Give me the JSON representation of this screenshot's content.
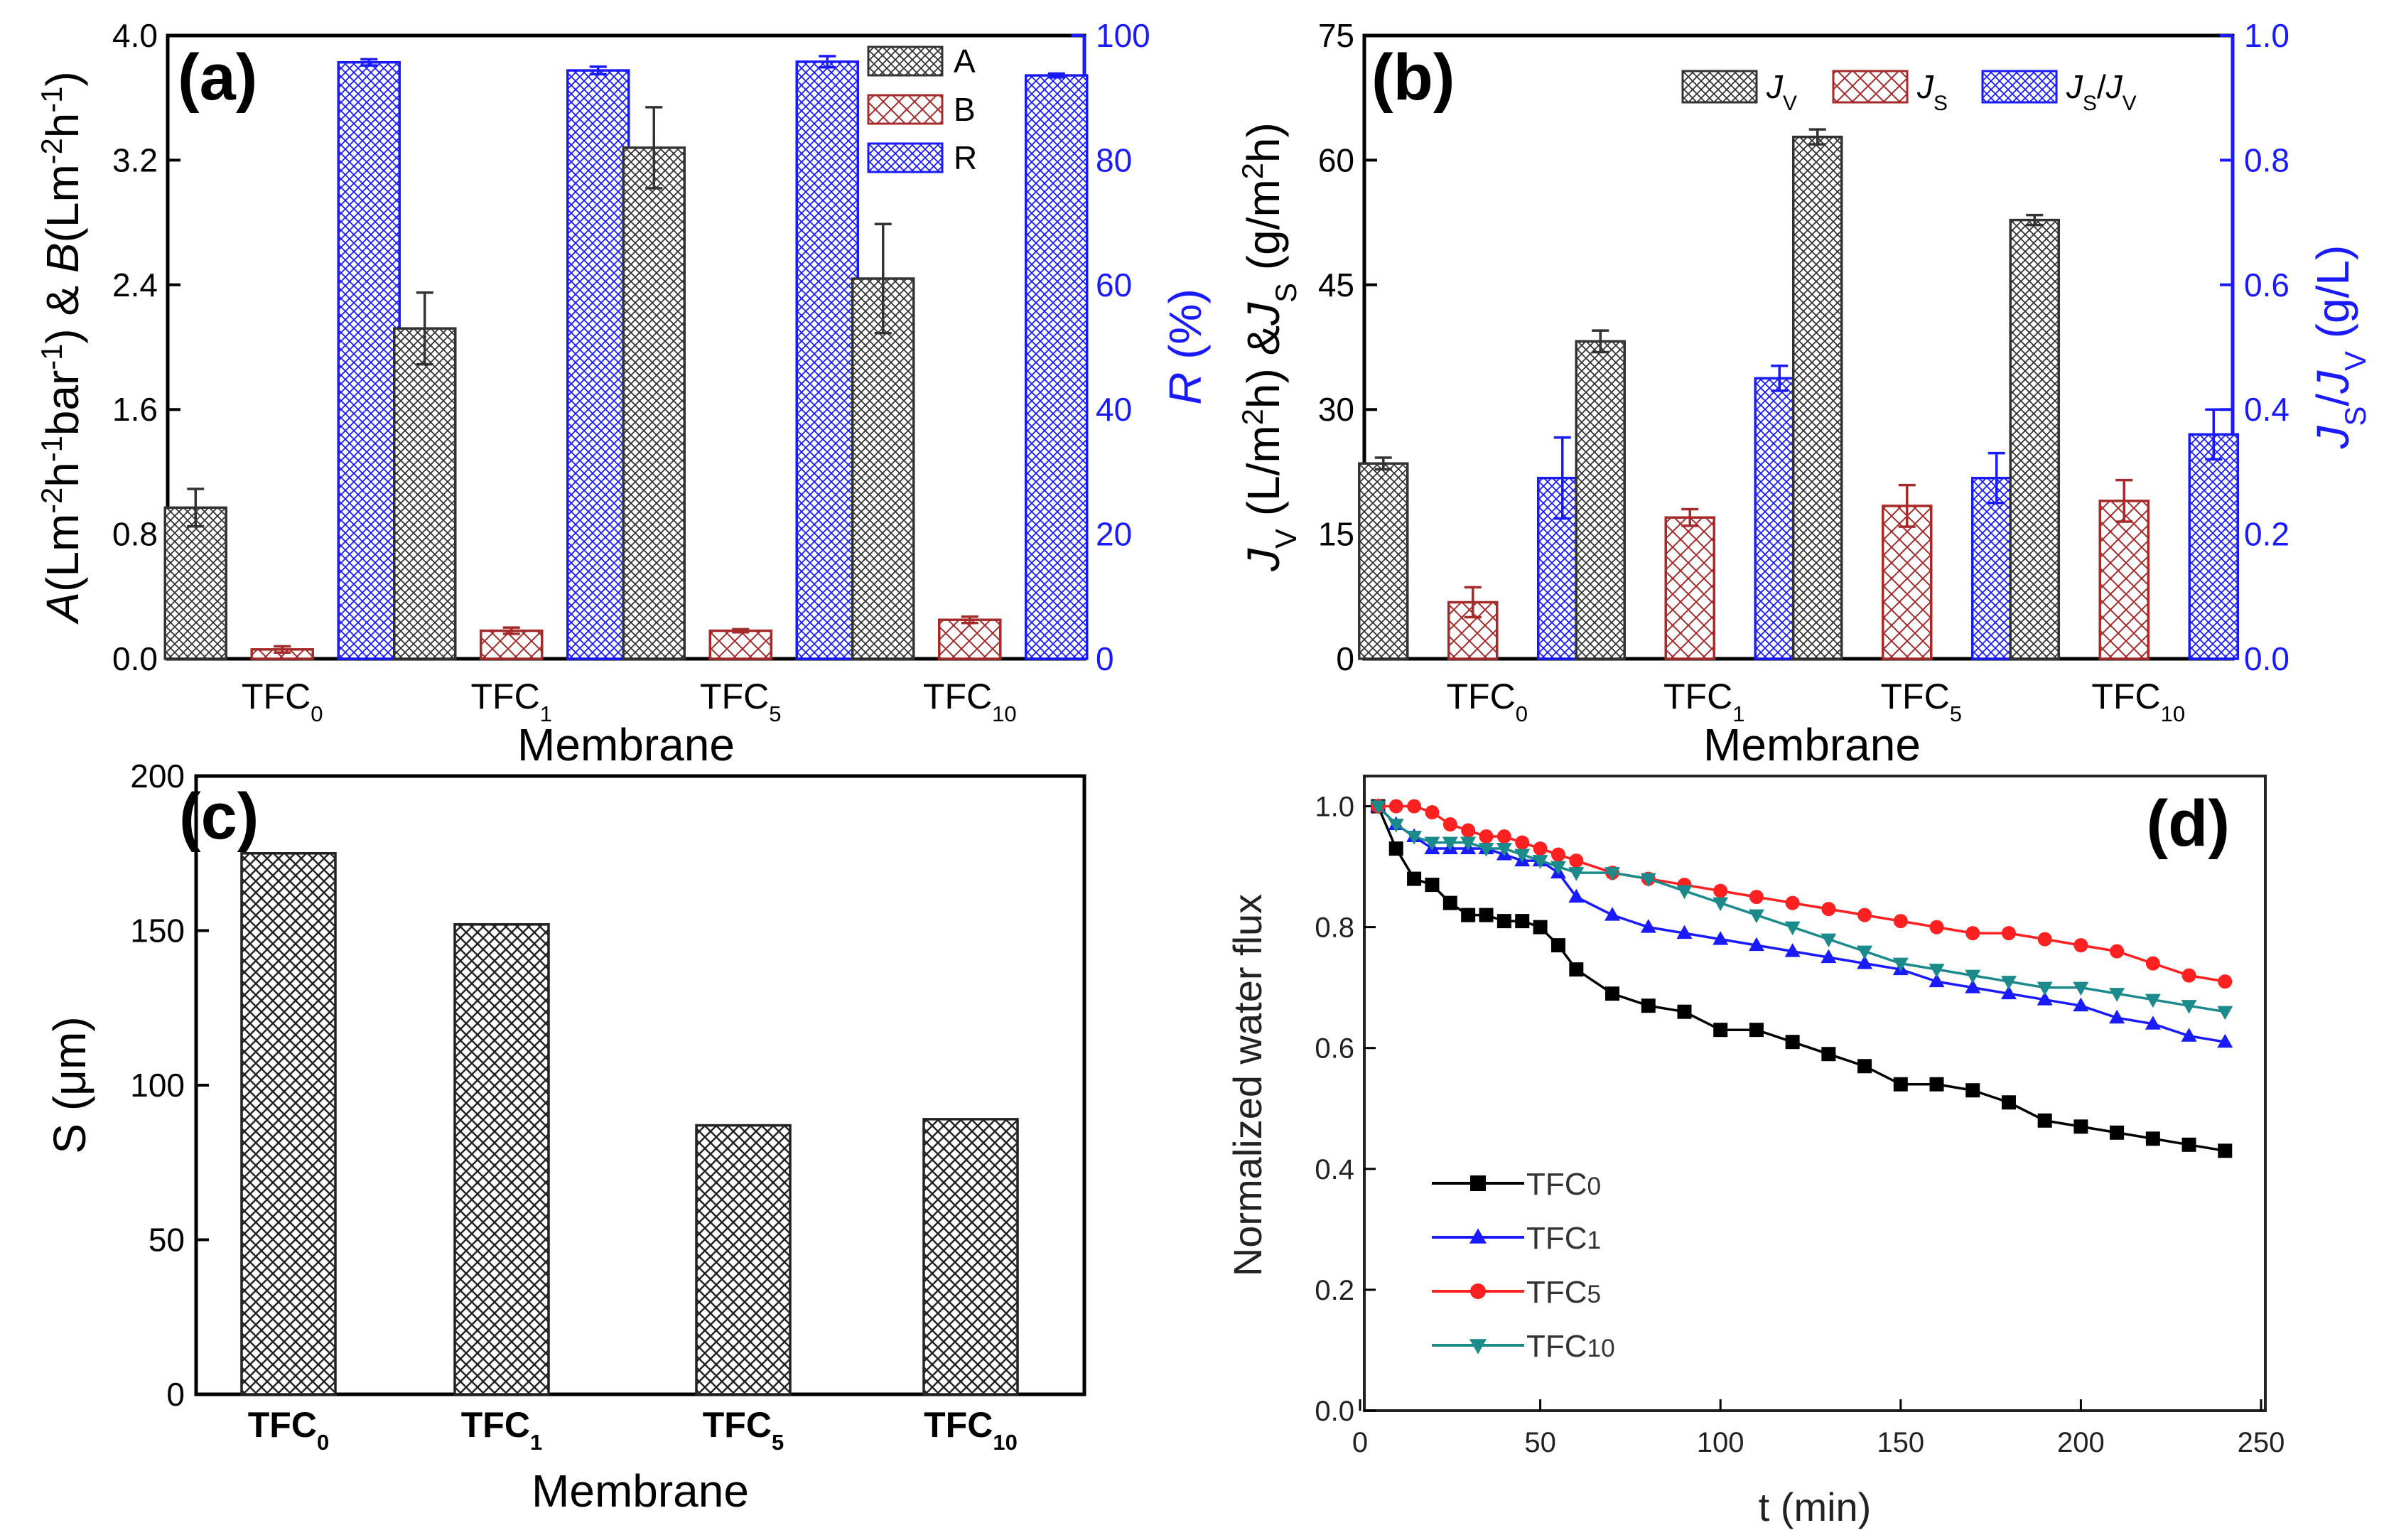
{
  "chart_data": [
    {
      "id": "a",
      "type": "bar",
      "panel_label": "(a)",
      "categories": [
        "TFC0",
        "TFC1",
        "TFC5",
        "TFC10"
      ],
      "category_parts": [
        [
          "TFC",
          "0"
        ],
        [
          "TFC",
          "1"
        ],
        [
          "TFC",
          "5"
        ],
        [
          "TFC",
          "10"
        ]
      ],
      "xlabel": "Membrane",
      "ylabel_left": "A(Lm-2h-1bar-1) & B(Lm-2h-1)",
      "ylabel_left_parts": [
        [
          "A",
          "i"
        ],
        [
          "(Lm",
          ""
        ],
        [
          "-2",
          "sup"
        ],
        [
          "h",
          ""
        ],
        [
          "-1",
          "sup"
        ],
        [
          "bar",
          ""
        ],
        [
          "-1",
          "sup"
        ],
        [
          ") & ",
          ""
        ],
        [
          "B",
          "i"
        ],
        [
          "(Lm",
          ""
        ],
        [
          "-2",
          "sup"
        ],
        [
          "h",
          ""
        ],
        [
          "-1",
          "sup"
        ],
        [
          ")",
          ""
        ]
      ],
      "ylabel_right": "R (%)",
      "ylabel_right_parts": [
        [
          "R",
          "i"
        ],
        [
          " (%)",
          ""
        ]
      ],
      "ylim_left": [
        0,
        4.0
      ],
      "yticks_left": [
        "0.0",
        "0.8",
        "1.6",
        "2.4",
        "3.2",
        "4.0"
      ],
      "ylim_right": [
        0,
        100
      ],
      "yticks_right": [
        "0",
        "20",
        "40",
        "60",
        "80",
        "100"
      ],
      "legend": [
        "A",
        "B",
        "R"
      ],
      "legend_position": "top-right",
      "series": [
        {
          "name": "A",
          "axis": "left",
          "color": "#333333",
          "values": [
            0.97,
            2.12,
            3.28,
            2.44
          ],
          "errors": [
            0.12,
            0.23,
            0.26,
            0.35
          ]
        },
        {
          "name": "B",
          "axis": "left",
          "color": "#a52a2a",
          "values": [
            0.06,
            0.18,
            0.18,
            0.25
          ],
          "errors": [
            0.02,
            0.02,
            0.01,
            0.02
          ]
        },
        {
          "name": "R",
          "axis": "right",
          "color": "#1a1aff",
          "values": [
            95.7,
            94.4,
            95.8,
            93.6
          ],
          "errors": [
            0.5,
            0.6,
            0.9,
            0.3
          ]
        }
      ]
    },
    {
      "id": "b",
      "type": "bar",
      "panel_label": "(b)",
      "categories": [
        "TFC0",
        "TFC1",
        "TFC5",
        "TFC10"
      ],
      "category_parts": [
        [
          "TFC",
          "0"
        ],
        [
          "TFC",
          "1"
        ],
        [
          "TFC",
          "5"
        ],
        [
          "TFC",
          "10"
        ]
      ],
      "xlabel": "Membrane",
      "ylabel_left": "JV (L/m2h) &JS (g/m2h)",
      "ylabel_left_parts": [
        [
          "J",
          "i"
        ],
        [
          "V",
          "sub"
        ],
        [
          " (L/m",
          ""
        ],
        [
          "2",
          "sup"
        ],
        [
          "h) &",
          ""
        ],
        [
          "J",
          "i"
        ],
        [
          "S",
          "sub"
        ],
        [
          " (g/m",
          ""
        ],
        [
          "2",
          "sup"
        ],
        [
          "h)",
          ""
        ]
      ],
      "ylabel_right": "JS/JV (g/L)",
      "ylabel_right_parts": [
        [
          "J",
          "i"
        ],
        [
          "S",
          "sub"
        ],
        [
          "/",
          ""
        ],
        [
          "J",
          "i"
        ],
        [
          "V",
          "sub"
        ],
        [
          " (g/L)",
          ""
        ]
      ],
      "ylim_left": [
        0,
        75
      ],
      "yticks_left": [
        "0",
        "15",
        "30",
        "45",
        "60",
        "75"
      ],
      "ylim_right": [
        0,
        1.0
      ],
      "yticks_right": [
        "0.0",
        "0.2",
        "0.4",
        "0.6",
        "0.8",
        "1.0"
      ],
      "legend": [
        "JV",
        "JS",
        "JS/JV"
      ],
      "legend_parts": [
        [
          [
            "J",
            "i"
          ],
          [
            "V",
            "sub"
          ]
        ],
        [
          [
            "J",
            "i"
          ],
          [
            "S",
            "sub"
          ]
        ],
        [
          [
            "J",
            "i"
          ],
          [
            "S",
            "sub"
          ],
          [
            "/",
            ""
          ],
          [
            "J",
            "i"
          ],
          [
            "V",
            "sub"
          ]
        ]
      ],
      "legend_position": "top-right",
      "series": [
        {
          "name": "JV",
          "axis": "left",
          "color": "#333333",
          "values": [
            23.5,
            38.2,
            62.8,
            52.8
          ],
          "errors": [
            0.7,
            1.3,
            0.9,
            0.6
          ]
        },
        {
          "name": "JS",
          "axis": "left",
          "color": "#a52a2a",
          "values": [
            6.8,
            17.0,
            18.4,
            19.0
          ],
          "errors": [
            1.8,
            1.0,
            2.5,
            2.5
          ]
        },
        {
          "name": "JS/JV",
          "axis": "right",
          "color": "#1a1aff",
          "values": [
            0.29,
            0.45,
            0.29,
            0.36
          ],
          "errors": [
            0.065,
            0.02,
            0.04,
            0.04
          ]
        }
      ]
    },
    {
      "id": "c",
      "type": "bar",
      "panel_label": "(c)",
      "categories": [
        "TFC0",
        "TFC1",
        "TFC5",
        "TFC10"
      ],
      "category_parts": [
        [
          "TFC",
          "0"
        ],
        [
          "TFC",
          "1"
        ],
        [
          "TFC",
          "5"
        ],
        [
          "TFC",
          "10"
        ]
      ],
      "xlabel": "Membrane",
      "ylabel": "S (μm)",
      "ylim": [
        0,
        200
      ],
      "yticks": [
        "0",
        "50",
        "100",
        "150",
        "200"
      ],
      "series": [
        {
          "name": "S",
          "color": "#333333",
          "values": [
            175,
            152,
            87,
            89
          ]
        }
      ]
    },
    {
      "id": "d",
      "type": "line",
      "panel_label": "(d)",
      "xlabel": "t (min)",
      "ylabel": "Normalized water flux",
      "xlim": [
        0,
        250
      ],
      "xticks": [
        "0",
        "50",
        "100",
        "150",
        "200",
        "250"
      ],
      "ylim": [
        0,
        1.05
      ],
      "yticks": [
        "0.0",
        "0.2",
        "0.4",
        "0.6",
        "0.8",
        "1.0"
      ],
      "legend": [
        "TFC0",
        "TFC1",
        "TFC5",
        "TFC10"
      ],
      "legend_parts": [
        [
          "TFC",
          "0"
        ],
        [
          "TFC",
          "1"
        ],
        [
          "TFC",
          "5"
        ],
        [
          "TFC",
          "10"
        ]
      ],
      "legend_position": "bottom-left",
      "series": [
        {
          "name": "TFC0",
          "color": "#000000",
          "marker": "square",
          "x": [
            5,
            10,
            15,
            20,
            25,
            30,
            35,
            40,
            45,
            50,
            55,
            60,
            70,
            80,
            90,
            100,
            110,
            120,
            130,
            140,
            150,
            160,
            170,
            180,
            190,
            200,
            210,
            220,
            230,
            240
          ],
          "y": [
            1.0,
            0.93,
            0.88,
            0.87,
            0.84,
            0.82,
            0.82,
            0.81,
            0.81,
            0.8,
            0.77,
            0.73,
            0.69,
            0.67,
            0.66,
            0.63,
            0.63,
            0.61,
            0.59,
            0.57,
            0.54,
            0.54,
            0.53,
            0.51,
            0.48,
            0.47,
            0.46,
            0.45,
            0.44,
            0.43
          ]
        },
        {
          "name": "TFC1",
          "color": "#1a1aff",
          "marker": "triangle-up",
          "x": [
            5,
            10,
            15,
            20,
            25,
            30,
            35,
            40,
            45,
            50,
            55,
            60,
            70,
            80,
            90,
            100,
            110,
            120,
            130,
            140,
            150,
            160,
            170,
            180,
            190,
            200,
            210,
            220,
            230,
            240
          ],
          "y": [
            1.0,
            0.97,
            0.95,
            0.93,
            0.93,
            0.93,
            0.93,
            0.92,
            0.91,
            0.91,
            0.89,
            0.85,
            0.82,
            0.8,
            0.79,
            0.78,
            0.77,
            0.76,
            0.75,
            0.74,
            0.73,
            0.71,
            0.7,
            0.69,
            0.68,
            0.67,
            0.65,
            0.64,
            0.62,
            0.61
          ]
        },
        {
          "name": "TFC5",
          "color": "#ff2020",
          "marker": "circle",
          "x": [
            5,
            10,
            15,
            20,
            25,
            30,
            35,
            40,
            45,
            50,
            55,
            60,
            70,
            80,
            90,
            100,
            110,
            120,
            130,
            140,
            150,
            160,
            170,
            180,
            190,
            200,
            210,
            220,
            230,
            240
          ],
          "y": [
            1.0,
            1.0,
            1.0,
            0.99,
            0.97,
            0.96,
            0.95,
            0.95,
            0.94,
            0.93,
            0.92,
            0.91,
            0.89,
            0.88,
            0.87,
            0.86,
            0.85,
            0.84,
            0.83,
            0.82,
            0.81,
            0.8,
            0.79,
            0.79,
            0.78,
            0.77,
            0.76,
            0.74,
            0.72,
            0.71
          ]
        },
        {
          "name": "TFC10",
          "color": "#1a8a8a",
          "marker": "triangle-down",
          "x": [
            5,
            10,
            15,
            20,
            25,
            30,
            35,
            40,
            45,
            50,
            55,
            60,
            70,
            80,
            90,
            100,
            110,
            120,
            130,
            140,
            150,
            160,
            170,
            180,
            190,
            200,
            210,
            220,
            230,
            240
          ],
          "y": [
            1.0,
            0.97,
            0.95,
            0.94,
            0.94,
            0.94,
            0.93,
            0.93,
            0.92,
            0.91,
            0.9,
            0.89,
            0.89,
            0.88,
            0.86,
            0.84,
            0.82,
            0.8,
            0.78,
            0.76,
            0.74,
            0.73,
            0.72,
            0.71,
            0.7,
            0.7,
            0.69,
            0.68,
            0.67,
            0.66
          ]
        }
      ]
    }
  ]
}
